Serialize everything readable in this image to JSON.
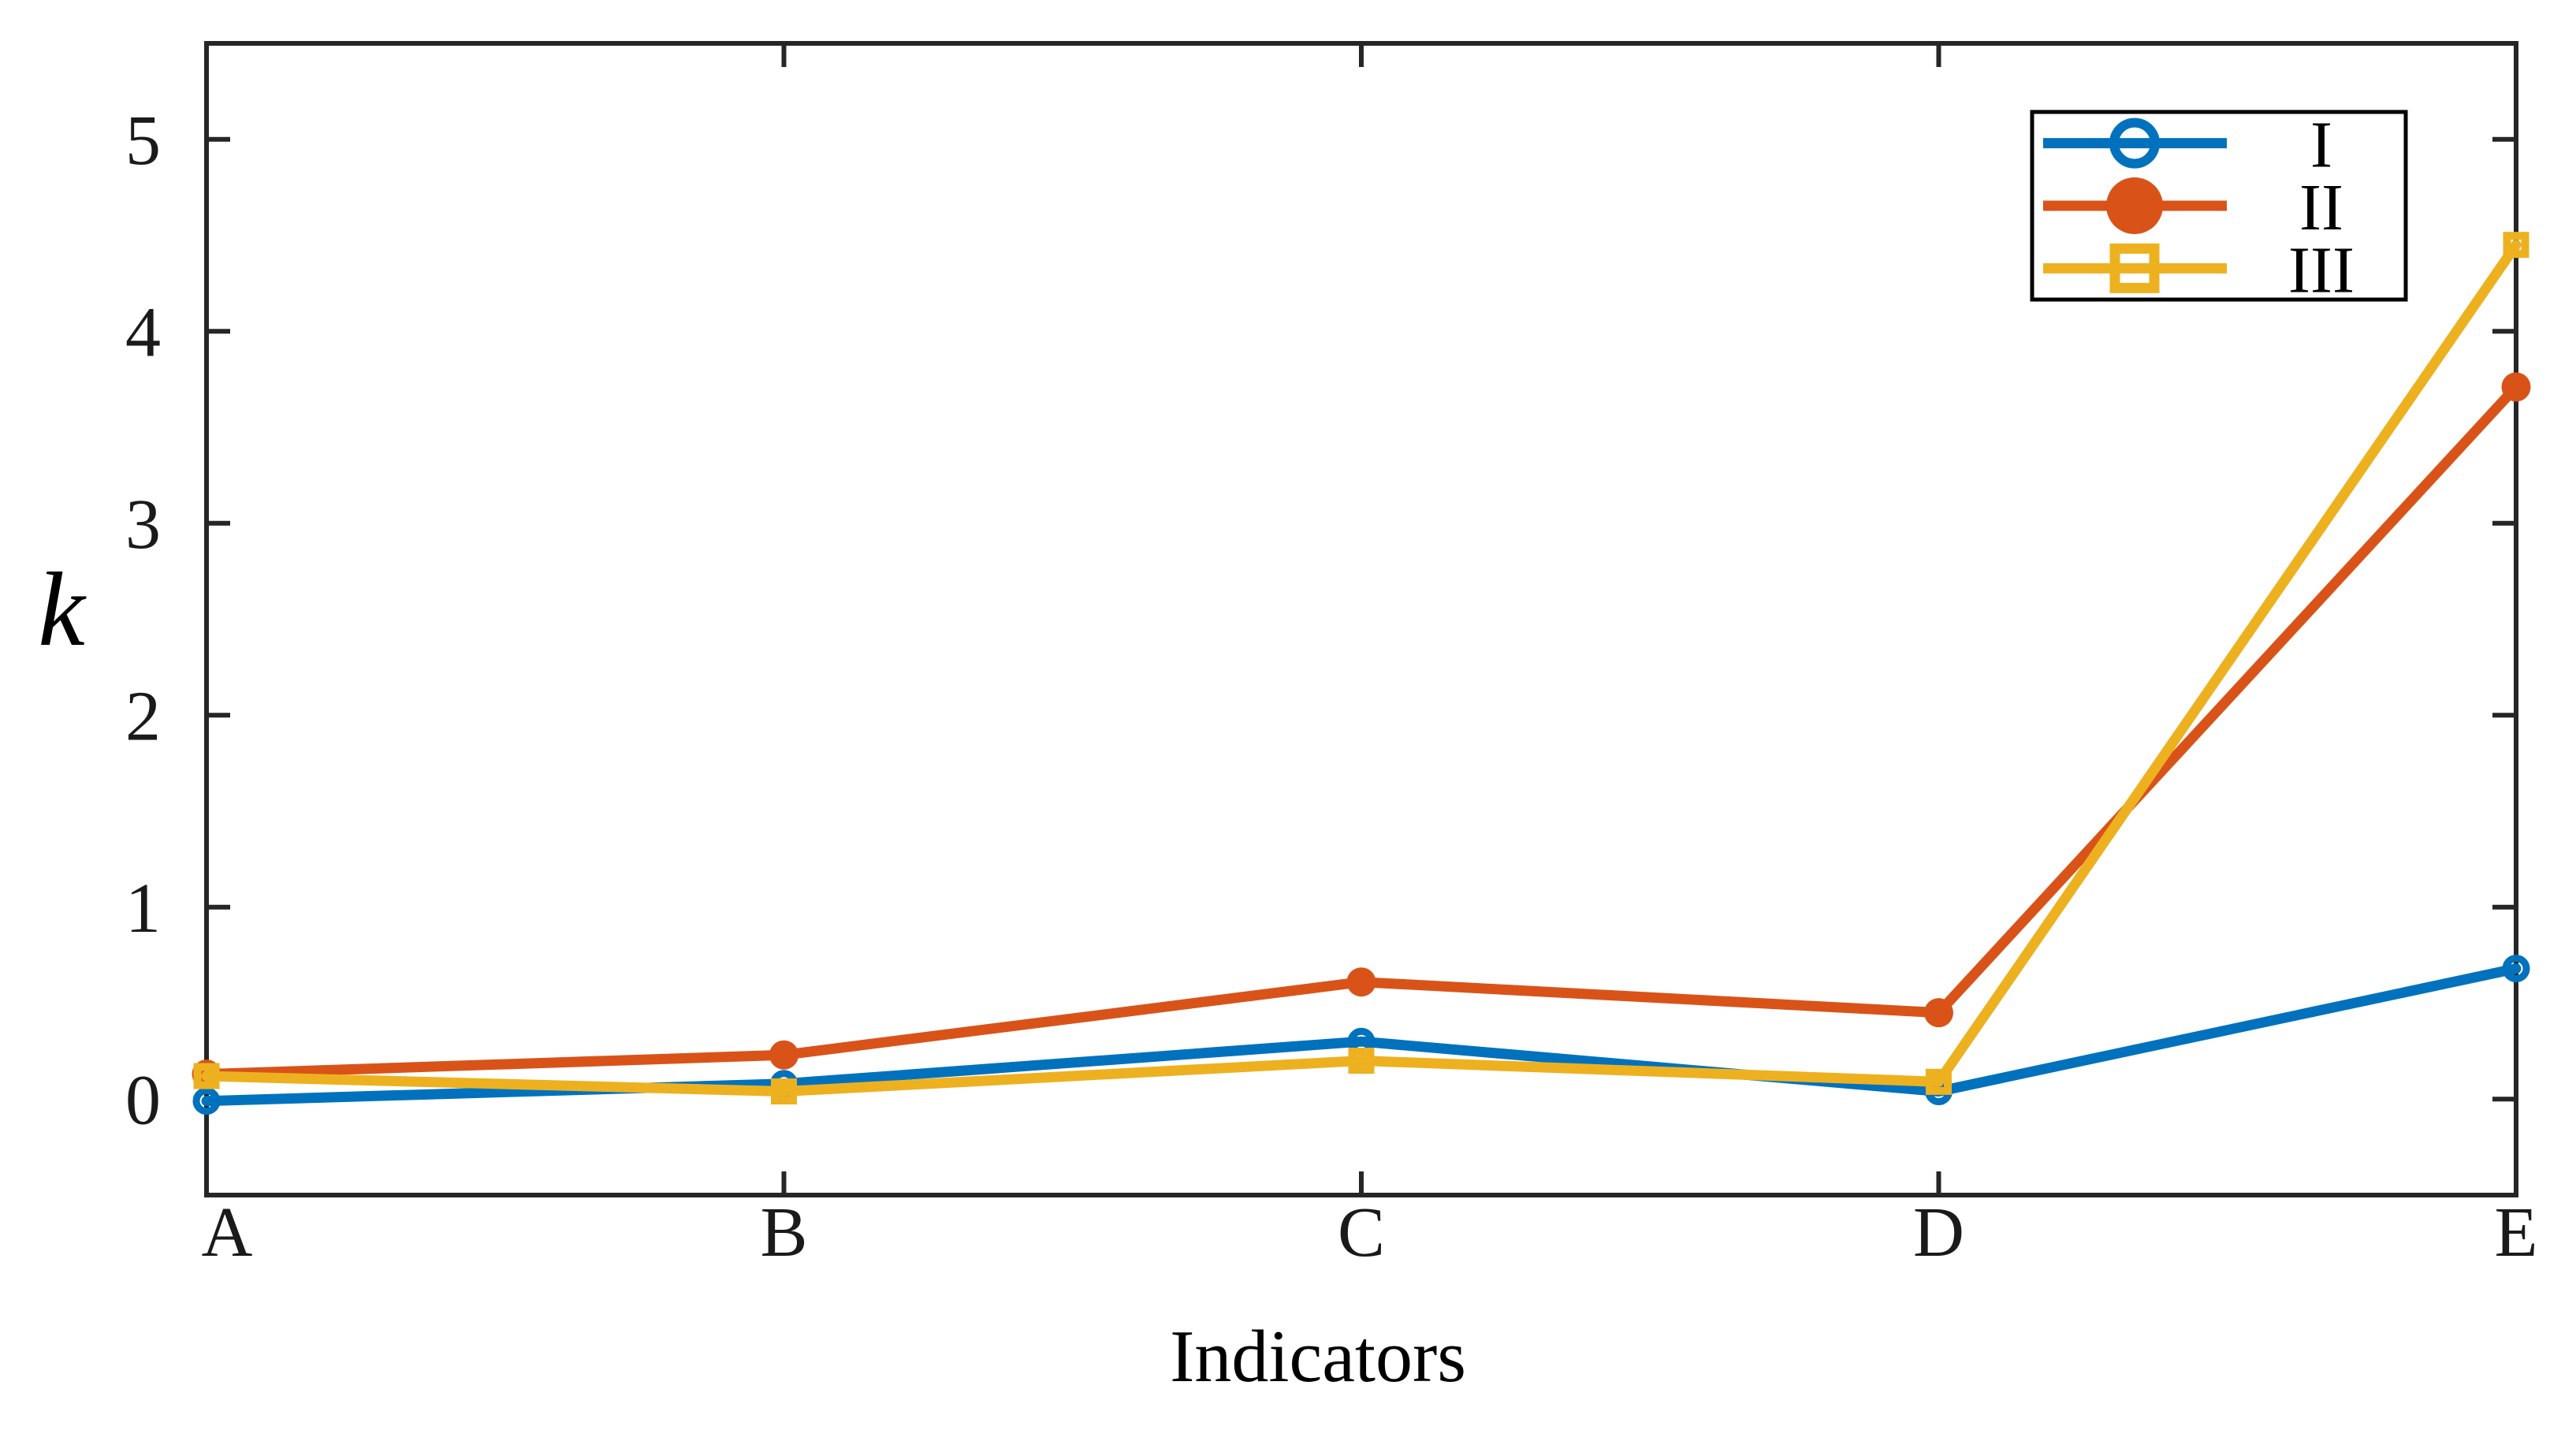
{
  "figure": {
    "background": "#ffffff",
    "axis_color": "#262626",
    "legend_border_color": "#000000"
  },
  "chart_data": {
    "type": "line",
    "title": "",
    "xlabel": "Indicators",
    "ylabel": "k",
    "categories": [
      "A",
      "B",
      "C",
      "D",
      "E"
    ],
    "yticks": [
      "0",
      "1",
      "2",
      "3",
      "4",
      "5"
    ],
    "ytick_values": [
      0,
      1,
      2,
      3,
      4,
      5
    ],
    "ylim": [
      -0.5,
      5.5
    ],
    "grid": false,
    "legend_position": "top-right",
    "series": [
      {
        "name": "I",
        "color": "#0072BD",
        "marker": "open-circle",
        "values": [
          -0.01,
          0.08,
          0.3,
          0.04,
          0.68
        ]
      },
      {
        "name": "II",
        "color": "#D95319",
        "marker": "filled-circle",
        "values": [
          0.13,
          0.23,
          0.61,
          0.45,
          3.71
        ]
      },
      {
        "name": "III",
        "color": "#EDB120",
        "marker": "open-square",
        "values": [
          0.12,
          0.04,
          0.2,
          0.09,
          4.45
        ]
      }
    ]
  }
}
